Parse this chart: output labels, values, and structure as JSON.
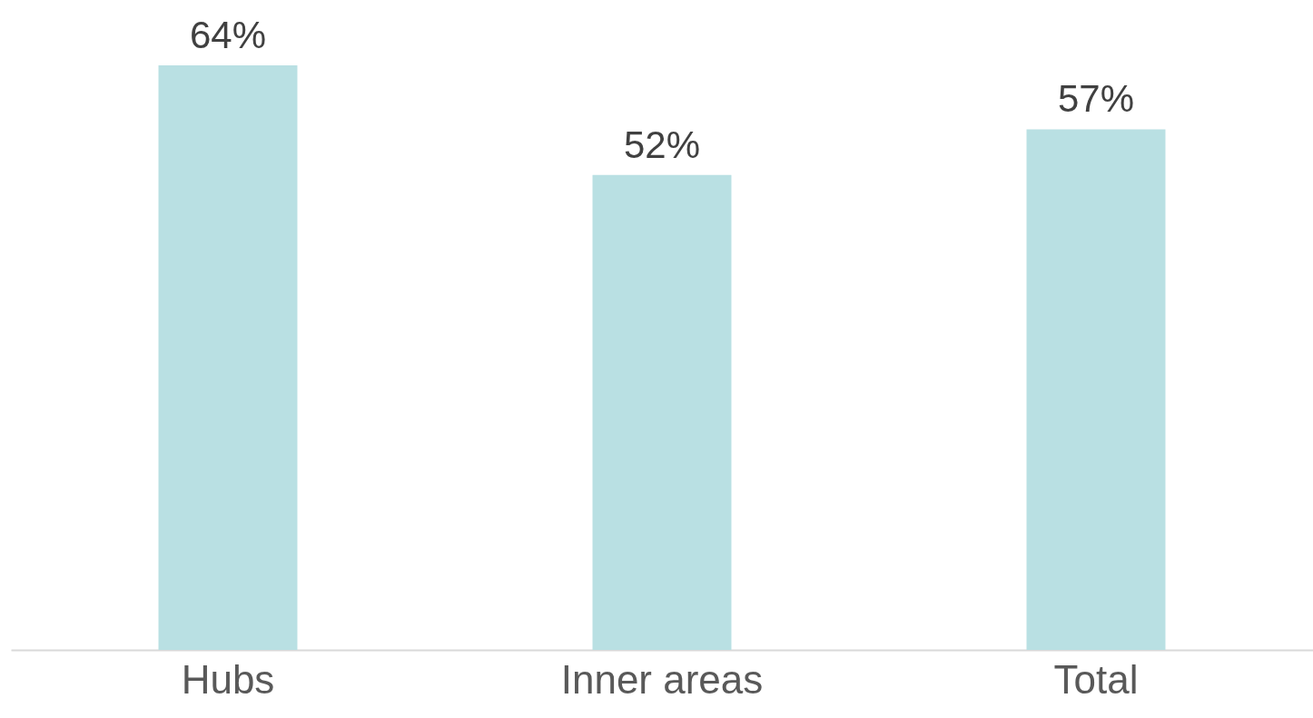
{
  "chart_data": {
    "type": "bar",
    "categories": [
      "Hubs",
      "Inner areas",
      "Total"
    ],
    "values": [
      64,
      52,
      57
    ],
    "value_labels": [
      "64%",
      "52%",
      "57%"
    ],
    "color": "#b9e0e3"
  }
}
